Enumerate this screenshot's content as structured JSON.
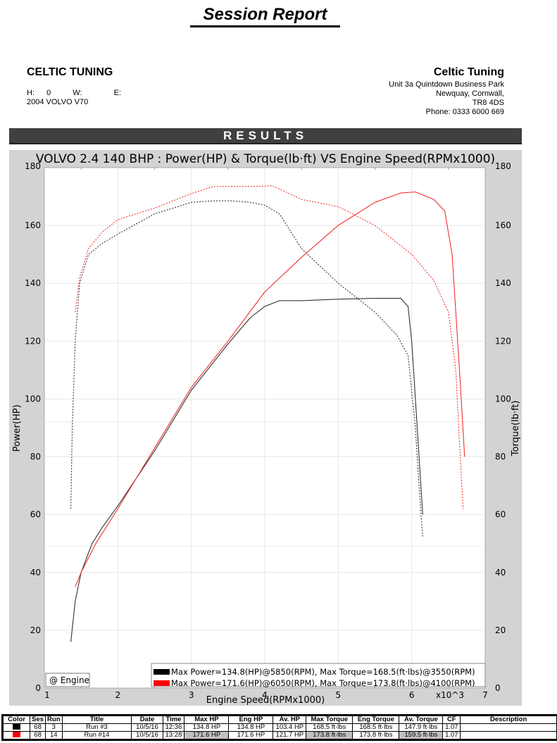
{
  "header": {
    "title": "Session Report"
  },
  "customer": {
    "name": "CELTIC TUNING",
    "h_label": "H:",
    "h_value": "0",
    "w_label": "W:",
    "w_value": "",
    "e_label": "E:",
    "e_value": "",
    "vehicle": "2004 VOLVO V70"
  },
  "company": {
    "name": "Celtic Tuning",
    "address1": "Unit 3a Quintdown Business Park",
    "address2": "Newquay, Cornwall,",
    "postcode": "TR8 4DS",
    "phone": "Phone: 0333 6000 669"
  },
  "results_label": "RESULTS",
  "chart_data": {
    "type": "line",
    "title": "VOLVO 2.4 140 BHP : Power(HP) & Torque(lb·ft) VS Engine Speed(RPMx1000)",
    "xlabel": "Engine Speed(RPMx1000)",
    "ylabel": "Power(HP)",
    "y2label": "Torque(lb·ft)",
    "x_multiplier_label": "x10^3",
    "xlim": [
      1,
      7
    ],
    "ylim": [
      0,
      180
    ],
    "y2lim": [
      0,
      180
    ],
    "xticks": [
      1,
      2,
      3,
      4,
      5,
      6,
      7
    ],
    "yticks": [
      0,
      20,
      40,
      60,
      80,
      100,
      120,
      140,
      160,
      180
    ],
    "y2ticks": [
      0,
      20,
      40,
      60,
      80,
      100,
      120,
      140,
      160,
      180
    ],
    "grid": true,
    "corner_label": "@ Engine",
    "legend": [
      {
        "color": "#000000",
        "text": "Max Power=134.8(HP)@5850(RPM), Max Torque=168.5(ft·lbs)@3550(RPM)"
      },
      {
        "color": "#ff0000",
        "text": "Max Power=171.6(HP)@6050(RPM), Max Torque=173.8(ft·lbs)@4100(RPM)"
      }
    ],
    "series": [
      {
        "name": "Run #3 Power (HP)",
        "color": "#000000",
        "style": "solid",
        "axis": "left",
        "x": [
          1.36,
          1.42,
          1.5,
          1.65,
          1.8,
          2.0,
          2.5,
          3.0,
          3.5,
          3.8,
          4.0,
          4.2,
          4.5,
          5.0,
          5.5,
          5.85,
          5.95,
          6.0,
          6.05,
          6.1,
          6.15
        ],
        "y": [
          16,
          30,
          40,
          50,
          56,
          63,
          82,
          103,
          119,
          128,
          132,
          134,
          134,
          134.5,
          134.8,
          134.8,
          132,
          120,
          100,
          80,
          60
        ]
      },
      {
        "name": "Run #3 Torque (lb·ft)",
        "color": "#000000",
        "style": "dotted",
        "axis": "right",
        "x": [
          1.36,
          1.38,
          1.42,
          1.48,
          1.6,
          1.8,
          2.0,
          2.5,
          3.0,
          3.3,
          3.55,
          3.8,
          4.0,
          4.2,
          4.5,
          5.0,
          5.5,
          5.8,
          5.95,
          6.05,
          6.1,
          6.15
        ],
        "y": [
          62,
          90,
          120,
          140,
          150,
          154,
          157,
          164,
          168,
          168.5,
          168.5,
          168,
          167,
          164,
          152,
          140,
          130,
          122,
          115,
          90,
          70,
          52
        ]
      },
      {
        "name": "Run #14 Power (HP)",
        "color": "#ff0000",
        "style": "solid",
        "axis": "left",
        "x": [
          1.42,
          1.5,
          1.7,
          2.0,
          2.5,
          3.0,
          3.5,
          4.0,
          4.5,
          5.0,
          5.5,
          5.85,
          6.05,
          6.3,
          6.45,
          6.55,
          6.6,
          6.65,
          6.72
        ],
        "y": [
          35,
          40,
          50,
          62,
          83,
          104,
          120,
          137,
          149,
          160,
          168,
          171.2,
          171.6,
          169,
          165,
          150,
          130,
          110,
          80
        ]
      },
      {
        "name": "Run #14 Torque (lb·ft)",
        "color": "#ff0000",
        "style": "dotted",
        "axis": "right",
        "x": [
          1.42,
          1.48,
          1.6,
          1.8,
          2.0,
          2.5,
          3.0,
          3.3,
          3.6,
          4.0,
          4.1,
          4.5,
          5.0,
          5.5,
          6.0,
          6.3,
          6.5,
          6.6,
          6.65,
          6.7
        ],
        "y": [
          130,
          142,
          152,
          158,
          162,
          166,
          171,
          173.5,
          173.5,
          173.6,
          173.8,
          169,
          166.5,
          160,
          150,
          141,
          130,
          110,
          85,
          62
        ]
      }
    ]
  },
  "table": {
    "headers": [
      "Color",
      "Ses",
      "Run",
      "Title",
      "Date",
      "Time",
      "Max HP",
      "Eng HP",
      "Av. HP",
      "Max Torque",
      "Eng Torque",
      "Av. Torque",
      "CF",
      "Description"
    ],
    "rows": [
      {
        "color": "#000000",
        "ses": "68",
        "run": "3",
        "title": "Run #3",
        "date": "10/5/16",
        "time": "12:36",
        "max_hp": "134.8 HP",
        "eng_hp": "134.8 HP",
        "av_hp": "103.4 HP",
        "max_torque": "168.5 ft·lbs",
        "eng_torque": "168.5 ft·lbs",
        "av_torque": "147.9 ft·lbs",
        "cf": "1.07",
        "description": ""
      },
      {
        "color": "#ff0000",
        "ses": "68",
        "run": "14",
        "title": "Run #14",
        "date": "10/5/16",
        "time": "13:28",
        "max_hp": "171.6 HP",
        "eng_hp": "171.6 HP",
        "av_hp": "121.7 HP",
        "max_torque": "173.8 ft·lbs",
        "eng_torque": "173.8 ft·lbs",
        "av_torque": "159.5 ft·lbs",
        "cf": "1.07",
        "description": ""
      }
    ]
  }
}
